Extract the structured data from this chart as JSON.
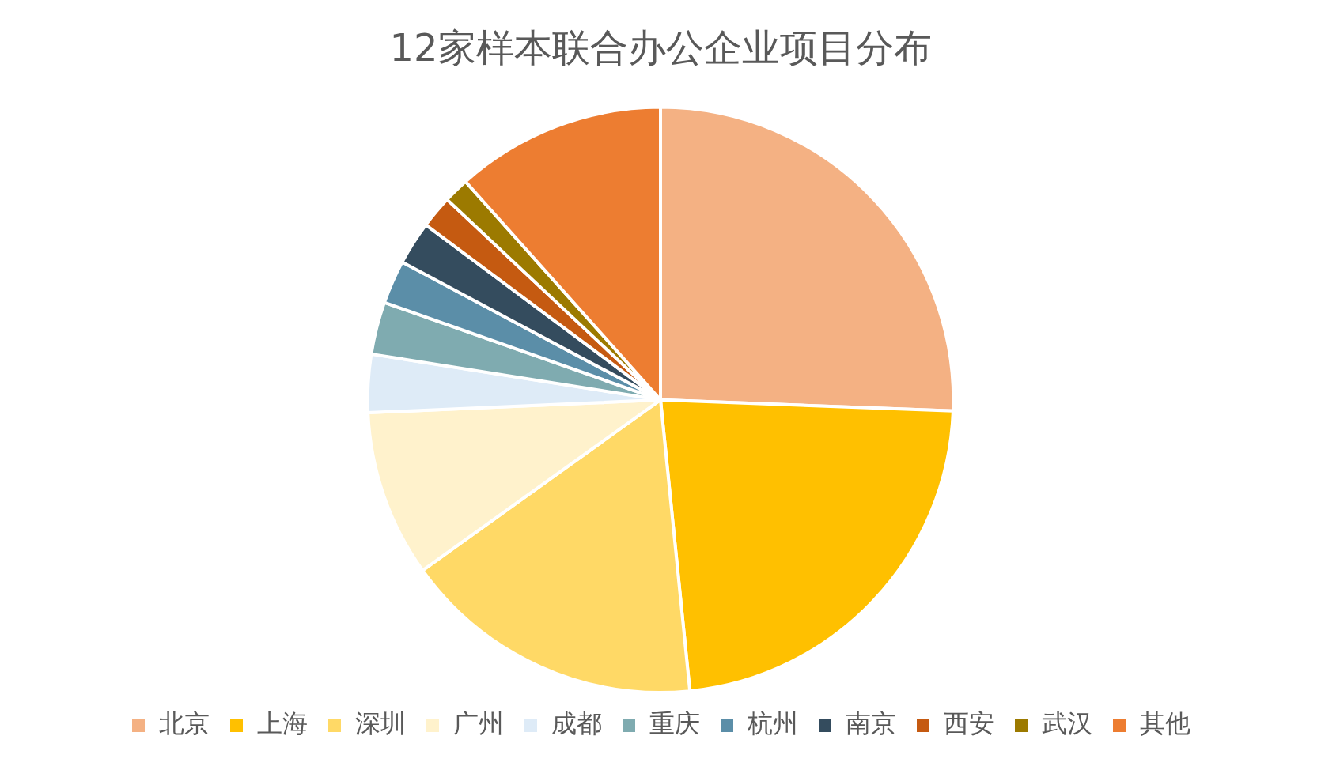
{
  "chart_data": {
    "type": "pie",
    "title": "12家样本联合办公企业项目分布",
    "categories": [
      "北京",
      "上海",
      "深圳",
      "广州",
      "成都",
      "重庆",
      "杭州",
      "南京",
      "西安",
      "武汉",
      "其他"
    ],
    "values": [
      25.6,
      22.8,
      16.7,
      9.2,
      3.2,
      2.9,
      2.4,
      2.4,
      1.8,
      1.4,
      11.6
    ],
    "colors": [
      "#f4b183",
      "#ffc000",
      "#ffd966",
      "#fff2cc",
      "#deebf7",
      "#7fabb0",
      "#5b8ea8",
      "#344c5e",
      "#c55a11",
      "#9c7a00",
      "#ed7d31"
    ],
    "legend": "bottom"
  }
}
